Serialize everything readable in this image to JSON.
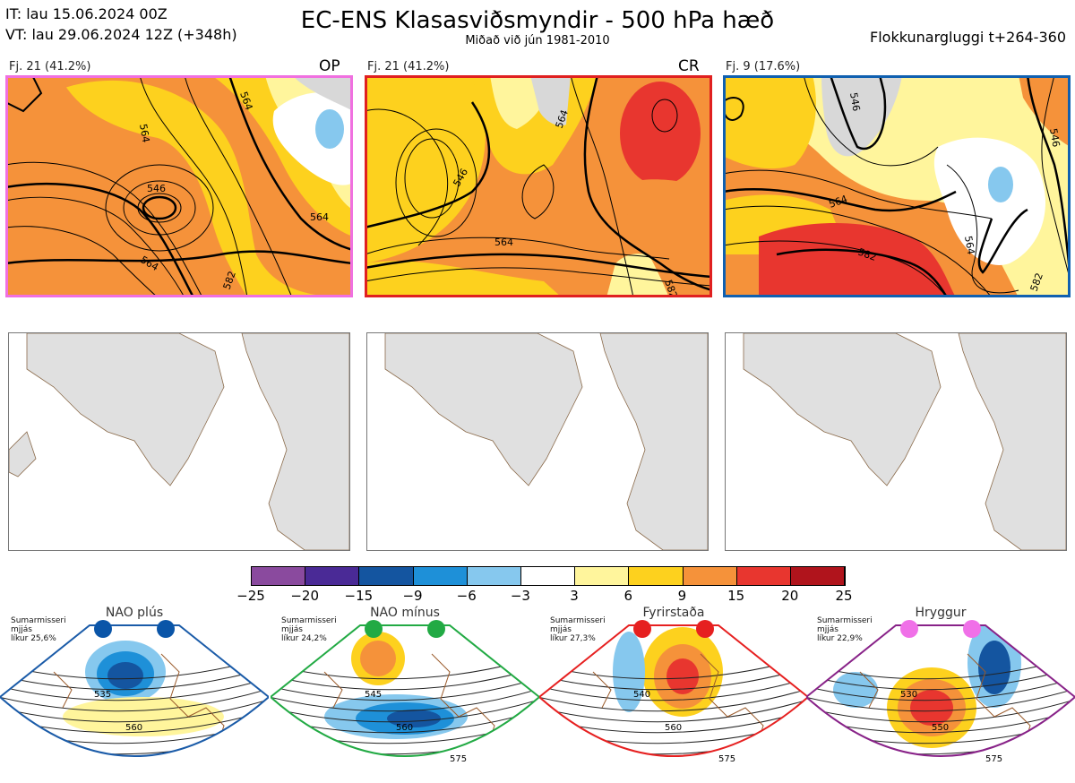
{
  "header": {
    "it_line": "IT: lau 15.06.2024 00Z",
    "vt_line": "VT: lau 29.06.2024 12Z  (+348h)",
    "title": "EC-ENS Klasasviðsmyndir - 500 hPa hæð",
    "subtitle": "Miðað við jún 1981-2010",
    "window": "Flokkunargluggi t+264-360"
  },
  "panels": [
    {
      "label": "Fj. 21 (41.2%)",
      "code": "OP",
      "border_color": "#f070e0",
      "contours": [
        "546",
        "564",
        "564",
        "564",
        "564",
        "582"
      ]
    },
    {
      "label": "Fj. 21 (41.2%)",
      "code": "CR",
      "border_color": "#e02020",
      "contours": [
        "564",
        "546",
        "564",
        "582"
      ]
    },
    {
      "label": "Fj. 9 (17.6%)",
      "code": "",
      "border_color": "#1060b0",
      "contours": [
        "546",
        "564",
        "582",
        "564",
        "582",
        "546"
      ]
    }
  ],
  "colorbar": {
    "ticks": [
      "−25",
      "−20",
      "−15",
      "−9",
      "−6",
      "−3",
      "3",
      "6",
      "9",
      "15",
      "20",
      "25"
    ],
    "colors": [
      "#8a4a9e",
      "#4a2a96",
      "#1455a0",
      "#1e90d8",
      "#86c8ee",
      "#ffffff",
      "#fff59c",
      "#fdd11e",
      "#f5923a",
      "#e8362f",
      "#b0141c"
    ]
  },
  "regimes": [
    {
      "title": "NAO plús",
      "note": [
        "Sumarmisseri",
        "mjjás",
        "líkur 25,6%"
      ],
      "dot_color": "#0a55a8",
      "border_color": "#1a5ba8",
      "contours": [
        "535",
        "560"
      ]
    },
    {
      "title": "NAO mínus",
      "note": [
        "Sumarmisseri",
        "mjjás",
        "líkur 24,2%"
      ],
      "dot_color": "#22aa44",
      "border_color": "#22aa44",
      "contours": [
        "545",
        "560",
        "575"
      ]
    },
    {
      "title": "Fyrirstaða",
      "note": [
        "Sumarmisseri",
        "mjjás",
        "líkur 27,3%"
      ],
      "dot_color": "#e62020",
      "border_color": "#e62020",
      "contours": [
        "540",
        "560",
        "575"
      ]
    },
    {
      "title": "Hryggur",
      "note": [
        "Sumarmisseri",
        "mjjás",
        "líkur 22,9%"
      ],
      "dot_color": "#f070e8",
      "border_color": "#882288",
      "contours": [
        "530",
        "550",
        "575"
      ]
    }
  ]
}
